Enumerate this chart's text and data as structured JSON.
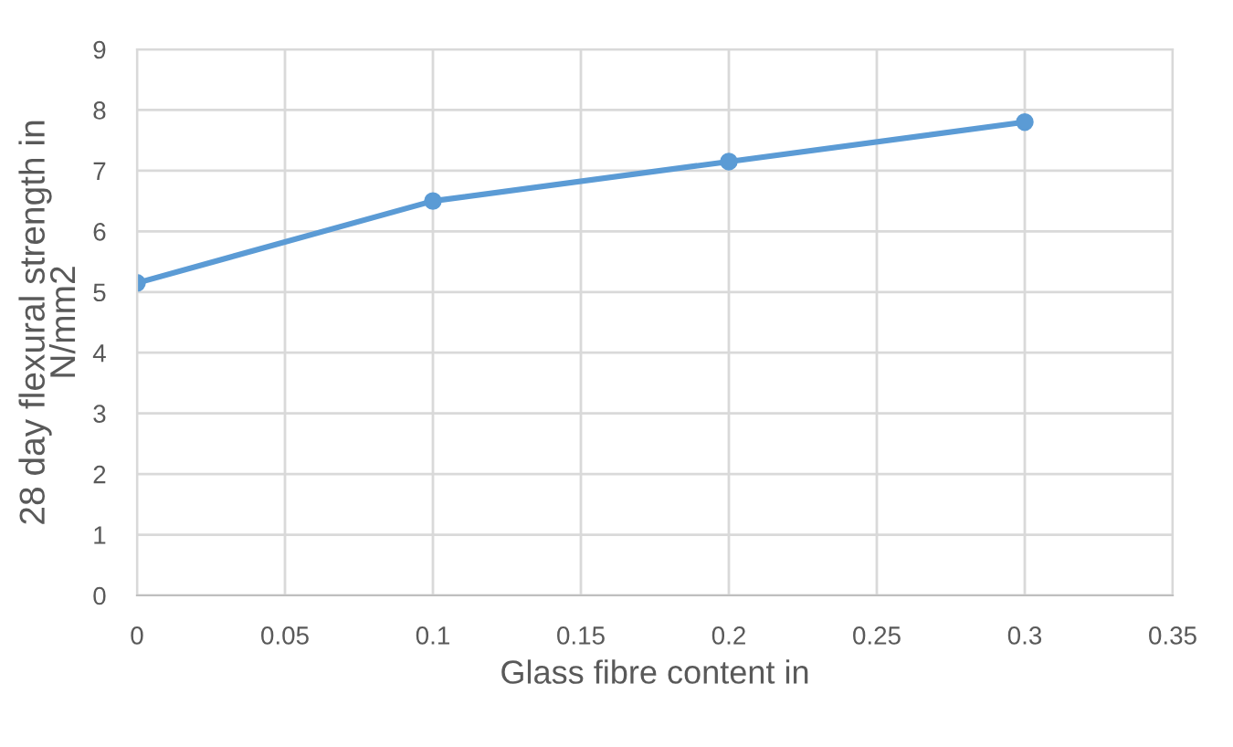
{
  "chart_data": {
    "type": "line",
    "xlabel": "Glass fibre content in",
    "ylabel": "28 day flexural strength in\nN/mm2",
    "series": [
      {
        "color": "#5b9bd5",
        "x": [
          0,
          0.1,
          0.2,
          0.3
        ],
        "values": [
          5.15,
          6.5,
          7.15,
          7.8
        ]
      }
    ],
    "xlim": [
      0,
      0.35
    ],
    "xticks": [
      0,
      0.05,
      0.1,
      0.15,
      0.2,
      0.25,
      0.3,
      0.35
    ],
    "ylim": [
      0,
      9
    ],
    "yticks": [
      0,
      1,
      2,
      3,
      4,
      5,
      6,
      7,
      8,
      9
    ],
    "grid": true,
    "marker": "circle",
    "line_style": "solid"
  }
}
